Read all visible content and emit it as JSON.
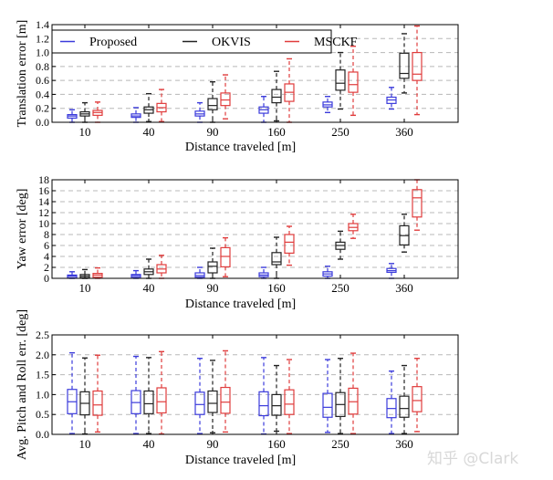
{
  "legend": {
    "placement": "top-left",
    "entries": [
      {
        "name": "Proposed",
        "color": "#3b3bdb"
      },
      {
        "name": "OKVIS",
        "color": "#222222"
      },
      {
        "name": "MSCKF",
        "color": "#e03c3c"
      }
    ]
  },
  "watermark": "知乎 @Clark",
  "chart_data": [
    {
      "type": "box",
      "title": "",
      "xlabel": "Distance traveled [m]",
      "ylabel": "Translation error [m]",
      "categories": [
        "10",
        "40",
        "90",
        "160",
        "250",
        "360"
      ],
      "ylim": [
        0,
        1.4
      ],
      "yticks": [
        "0.0",
        "0.2",
        "0.4",
        "0.6",
        "0.8",
        "1.0",
        "1.2",
        "1.4"
      ],
      "grid": true,
      "legend": true,
      "series": [
        {
          "name": "Proposed",
          "stats": [
            [
              0,
              0.06,
              0.09,
              0.11,
              0.18
            ],
            [
              0,
              0.07,
              0.09,
              0.12,
              0.21
            ],
            [
              0,
              0.09,
              0.12,
              0.16,
              0.28
            ],
            [
              0,
              0.13,
              0.18,
              0.22,
              0.37
            ],
            [
              0.14,
              0.22,
              0.25,
              0.29,
              0.37
            ],
            [
              0.19,
              0.27,
              0.32,
              0.36,
              0.5
            ]
          ]
        },
        {
          "name": "OKVIS",
          "stats": [
            [
              0,
              0.09,
              0.12,
              0.15,
              0.28
            ],
            [
              0.01,
              0.13,
              0.18,
              0.22,
              0.41
            ],
            [
              0,
              0.18,
              0.24,
              0.34,
              0.58
            ],
            [
              0.02,
              0.28,
              0.36,
              0.47,
              0.73
            ],
            [
              0.19,
              0.46,
              0.56,
              0.75,
              1.0
            ],
            [
              0.42,
              0.63,
              0.7,
              0.99,
              1.27
            ]
          ]
        },
        {
          "name": "MSCKF",
          "stats": [
            [
              0,
              0.1,
              0.14,
              0.17,
              0.29
            ],
            [
              0.01,
              0.15,
              0.21,
              0.27,
              0.47
            ],
            [
              0.05,
              0.24,
              0.32,
              0.42,
              0.68
            ],
            [
              0,
              0.3,
              0.43,
              0.55,
              0.91
            ],
            [
              0.1,
              0.43,
              0.54,
              0.72,
              1.09
            ],
            [
              0.11,
              0.6,
              0.69,
              1.0,
              1.38
            ]
          ]
        }
      ]
    },
    {
      "type": "box",
      "title": "",
      "xlabel": "Distance traveled [m]",
      "ylabel": "Yaw error [deg]",
      "categories": [
        "10",
        "40",
        "90",
        "160",
        "250",
        "360"
      ],
      "ylim": [
        0,
        18
      ],
      "yticks": [
        "0",
        "2",
        "4",
        "6",
        "8",
        "10",
        "12",
        "14",
        "16",
        "18"
      ],
      "grid": true,
      "legend": false,
      "series": [
        {
          "name": "Proposed",
          "stats": [
            [
              0,
              0.1,
              0.4,
              0.6,
              1.2
            ],
            [
              0,
              0.2,
              0.5,
              0.7,
              1.4
            ],
            [
              0,
              0.2,
              0.5,
              1.0,
              2.0
            ],
            [
              0,
              0.3,
              0.6,
              1.0,
              2.0
            ],
            [
              0,
              0.4,
              0.8,
              1.2,
              2.2
            ],
            [
              0,
              1.1,
              1.4,
              1.8,
              2.7
            ]
          ]
        },
        {
          "name": "OKVIS",
          "stats": [
            [
              0,
              0.1,
              0.4,
              0.7,
              1.6
            ],
            [
              0,
              0.7,
              1.2,
              1.7,
              3.5
            ],
            [
              0,
              1.0,
              2.2,
              3.0,
              5.5
            ],
            [
              0,
              2.5,
              3.0,
              4.7,
              7.5
            ],
            [
              3.5,
              5.3,
              6.0,
              6.6,
              8.6
            ],
            [
              4.8,
              6.1,
              7.8,
              9.6,
              11.7
            ]
          ]
        },
        {
          "name": "MSCKF",
          "stats": [
            [
              0,
              0.2,
              0.6,
              0.9,
              1.9
            ],
            [
              0,
              1.0,
              1.7,
              2.5,
              4.2
            ],
            [
              0.3,
              2.1,
              4.0,
              5.6,
              7.4
            ],
            [
              2.4,
              4.6,
              6.6,
              8.0,
              9.5
            ],
            [
              7.3,
              8.7,
              9.3,
              10.0,
              11.7
            ],
            [
              8.8,
              11.2,
              14.7,
              16.2,
              18.0
            ]
          ]
        }
      ]
    },
    {
      "type": "box",
      "title": "",
      "xlabel": "Distance traveled [m]",
      "ylabel": "Avg. Pitch and Roll err. [deg]",
      "categories": [
        "10",
        "40",
        "90",
        "160",
        "250",
        "360"
      ],
      "ylim": [
        0,
        2.5
      ],
      "yticks": [
        "0.0",
        "0.5",
        "1.0",
        "1.5",
        "2.0",
        "2.5"
      ],
      "grid": true,
      "legend": false,
      "series": [
        {
          "name": "Proposed",
          "stats": [
            [
              0.02,
              0.52,
              0.82,
              1.13,
              2.05
            ],
            [
              0.02,
              0.52,
              0.8,
              1.1,
              1.96
            ],
            [
              0.02,
              0.5,
              0.75,
              1.06,
              1.91
            ],
            [
              0.01,
              0.47,
              0.72,
              1.07,
              1.93
            ],
            [
              0.05,
              0.43,
              0.68,
              1.03,
              1.88
            ],
            [
              0.02,
              0.42,
              0.65,
              0.9,
              1.59
            ]
          ]
        },
        {
          "name": "OKVIS",
          "stats": [
            [
              0.01,
              0.49,
              0.78,
              1.07,
              1.92
            ],
            [
              0.02,
              0.52,
              0.77,
              1.09,
              1.93
            ],
            [
              0.04,
              0.55,
              0.78,
              1.09,
              1.86
            ],
            [
              0.08,
              0.48,
              0.72,
              1.0,
              1.73
            ],
            [
              0.02,
              0.45,
              0.75,
              1.05,
              1.91
            ],
            [
              0.02,
              0.43,
              0.65,
              0.96,
              1.73
            ]
          ]
        },
        {
          "name": "MSCKF",
          "stats": [
            [
              0.06,
              0.48,
              0.74,
              1.09,
              1.99
            ],
            [
              0.01,
              0.54,
              0.82,
              1.17,
              2.08
            ],
            [
              0.06,
              0.53,
              0.81,
              1.18,
              2.1
            ],
            [
              0.02,
              0.5,
              0.76,
              1.12,
              1.88
            ],
            [
              0.02,
              0.51,
              0.82,
              1.16,
              2.04
            ],
            [
              0.07,
              0.57,
              0.85,
              1.2,
              1.91
            ]
          ]
        }
      ]
    }
  ]
}
